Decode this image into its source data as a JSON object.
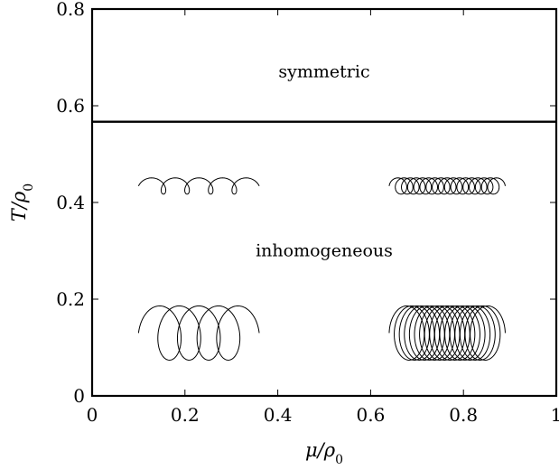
{
  "chart_data": {
    "type": "line",
    "title": "",
    "xlabel": "μ/ρ0",
    "ylabel": "T/ρ0",
    "xlim": [
      0,
      1
    ],
    "ylim": [
      0,
      0.8
    ],
    "x_ticks": [
      0,
      0.2,
      0.4,
      0.6,
      0.8,
      1
    ],
    "y_ticks": [
      0,
      0.2,
      0.4,
      0.6,
      0.8
    ],
    "x_tick_labels": [
      "0",
      "0.2",
      "0.4",
      "0.6",
      "0.8",
      "1"
    ],
    "y_tick_labels": [
      "0",
      "0.2",
      "0.4",
      "0.6",
      "0.8"
    ],
    "grid": false,
    "series": [
      {
        "x": [
          0,
          1
        ],
        "y": [
          0.567,
          0.567
        ]
      }
    ],
    "regions": [
      {
        "label": "symmetric",
        "x": 0.5,
        "y": 0.67
      },
      {
        "label": "inhomogeneous",
        "x": 0.5,
        "y": 0.3
      }
    ],
    "helix_icons": [
      {
        "x_range": [
          0.1,
          0.36
        ],
        "y_center": 0.434,
        "loops": 4,
        "kind": "small"
      },
      {
        "x_range": [
          0.64,
          0.89
        ],
        "y_center": 0.434,
        "loops": 16,
        "kind": "small"
      },
      {
        "x_range": [
          0.1,
          0.36
        ],
        "y_center": 0.13,
        "loops": 4,
        "kind": "large"
      },
      {
        "x_range": [
          0.64,
          0.89
        ],
        "y_center": 0.13,
        "loops": 16,
        "kind": "large"
      }
    ]
  }
}
